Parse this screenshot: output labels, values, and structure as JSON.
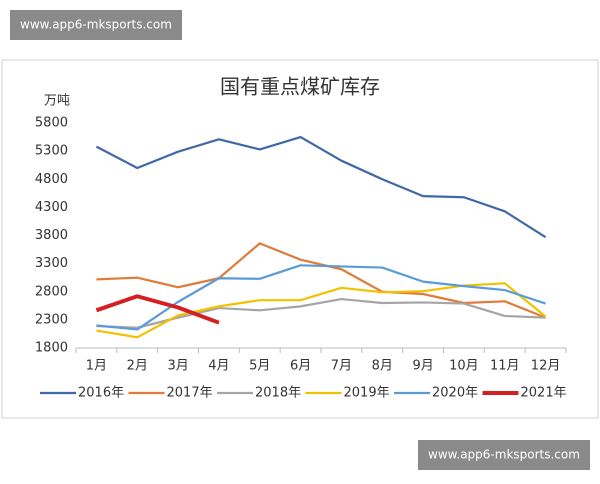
{
  "watermarks": [
    "www.app6-mksports.com",
    "www.app6-mksports.com"
  ],
  "chart_data": {
    "type": "line",
    "title": "国有重点煤矿库存",
    "y_label": "万吨",
    "categories": [
      "1月",
      "2月",
      "3月",
      "4月",
      "5月",
      "6月",
      "7月",
      "8月",
      "9月",
      "10月",
      "11月",
      "12月"
    ],
    "ylim": [
      1800,
      5800
    ],
    "yticks": [
      1800,
      2300,
      2800,
      3300,
      3800,
      4300,
      4800,
      5300,
      5800
    ],
    "grid": false,
    "series": [
      {
        "name": "2016年",
        "color": "#4068a8",
        "values": [
          5380,
          5000,
          5290,
          5510,
          5330,
          5550,
          5130,
          4800,
          4500,
          4480,
          4230,
          3770
        ]
      },
      {
        "name": "2017年",
        "color": "#e07b39",
        "values": [
          3020,
          3050,
          2880,
          3040,
          3660,
          3370,
          3200,
          2800,
          2760,
          2600,
          2630,
          2340
        ]
      },
      {
        "name": "2018年",
        "color": "#a5a5a5",
        "values": [
          2190,
          2160,
          2340,
          2510,
          2470,
          2540,
          2670,
          2600,
          2610,
          2590,
          2370,
          2340
        ]
      },
      {
        "name": "2019年",
        "color": "#f2c200",
        "values": [
          2110,
          1990,
          2380,
          2540,
          2650,
          2650,
          2870,
          2790,
          2810,
          2910,
          2950,
          2360
        ]
      },
      {
        "name": "2020年",
        "color": "#5b9bd5",
        "values": [
          2200,
          2130,
          2620,
          3040,
          3030,
          3270,
          3250,
          3230,
          2980,
          2900,
          2830,
          2590
        ]
      },
      {
        "name": "2021年",
        "color": "#d42020",
        "values": [
          2470,
          2720,
          2520,
          2250,
          null,
          null,
          null,
          null,
          null,
          null,
          null,
          null
        ]
      }
    ]
  }
}
